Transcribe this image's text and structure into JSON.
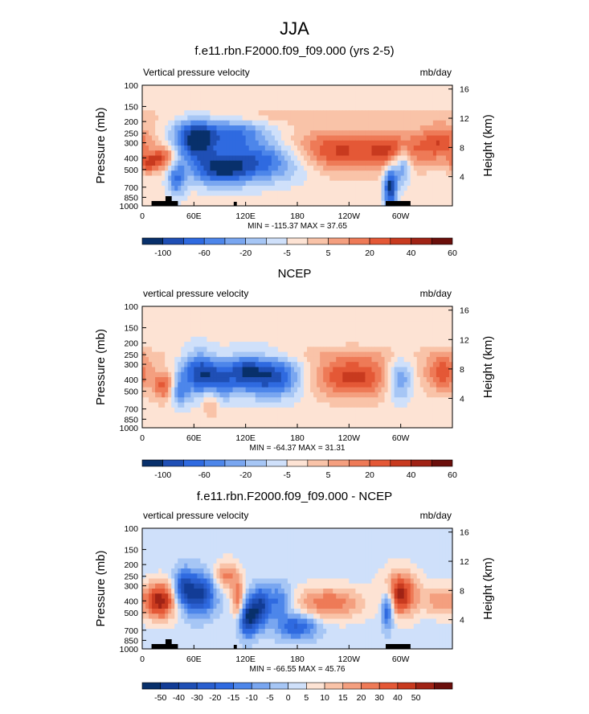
{
  "figure": {
    "title": "JJA"
  },
  "panels": [
    {
      "title": "f.e11.rbn.F2000.f09_f09.000 (yrs 2-5)",
      "left_string": "Vertical pressure velocity",
      "right_string": "mb/day",
      "stats": "MIN = -115.37  MAX =  37.65"
    },
    {
      "title": "NCEP",
      "left_string": "vertical pressure velocity",
      "right_string": "mb/day",
      "stats": "MIN = -64.37  MAX =  31.31"
    },
    {
      "title": "f.e11.rbn.F2000.f09_f09.000 - NCEP",
      "left_string": "vertical pressure velocity",
      "right_string": "mb/day",
      "stats": "MIN = -66.55  MAX =  45.76"
    }
  ],
  "chart_data": [
    {
      "type": "heatmap",
      "title": "f.e11.rbn.F2000.f09_f09.000 (yrs 2-5)",
      "xlabel": "",
      "ylabel": "Pressure (mb)",
      "y2label": "Height (km)",
      "x_ticks": [
        "0",
        "60E",
        "120E",
        "180",
        "120W",
        "60W"
      ],
      "y_ticks": [
        "100",
        "150",
        "200",
        "250",
        "300",
        "400",
        "500",
        "700",
        "850",
        "1000"
      ],
      "y2_ticks": [
        "16",
        "12",
        "8",
        "4"
      ],
      "colorbar_labels": [
        "-100",
        "-60",
        "-20",
        "-5",
        "5",
        "20",
        "40",
        "60"
      ],
      "colorbar_colors": [
        "#08306b",
        "#1f4fb5",
        "#2f6ae0",
        "#4d86ea",
        "#79a6f0",
        "#a6c6f5",
        "#cfe0fa",
        "#fde3d4",
        "#f9c3a8",
        "#f49f7f",
        "#ee7a57",
        "#e45836",
        "#c83a1f",
        "#a02315",
        "#6b0f0b"
      ],
      "ylim": [
        1000,
        100
      ],
      "zlim": [
        -115.37,
        37.65
      ]
    },
    {
      "type": "heatmap",
      "title": "NCEP",
      "xlabel": "",
      "ylabel": "Pressure (mb)",
      "y2label": "Height (km)",
      "x_ticks": [
        "0",
        "60E",
        "120E",
        "180",
        "120W",
        "60W"
      ],
      "y_ticks": [
        "100",
        "150",
        "200",
        "250",
        "300",
        "400",
        "500",
        "700",
        "850",
        "1000"
      ],
      "y2_ticks": [
        "16",
        "12",
        "8",
        "4"
      ],
      "colorbar_labels": [
        "-100",
        "-60",
        "-20",
        "-5",
        "5",
        "20",
        "40",
        "60"
      ],
      "colorbar_colors": [
        "#08306b",
        "#1f4fb5",
        "#2f6ae0",
        "#4d86ea",
        "#79a6f0",
        "#a6c6f5",
        "#cfe0fa",
        "#fde3d4",
        "#f9c3a8",
        "#f49f7f",
        "#ee7a57",
        "#e45836",
        "#c83a1f",
        "#a02315",
        "#6b0f0b"
      ],
      "ylim": [
        1000,
        100
      ],
      "zlim": [
        -64.37,
        31.31
      ]
    },
    {
      "type": "heatmap",
      "title": "f.e11.rbn.F2000.f09_f09.000 - NCEP",
      "xlabel": "",
      "ylabel": "Pressure (mb)",
      "y2label": "Height (km)",
      "x_ticks": [
        "0",
        "60E",
        "120E",
        "180",
        "120W",
        "60W"
      ],
      "y_ticks": [
        "100",
        "150",
        "200",
        "250",
        "300",
        "400",
        "500",
        "700",
        "850",
        "1000"
      ],
      "y2_ticks": [
        "16",
        "12",
        "8",
        "4"
      ],
      "colorbar_labels": [
        "-50",
        "-40",
        "-30",
        "-20",
        "-15",
        "-10",
        "-5",
        "0",
        "5",
        "10",
        "15",
        "20",
        "30",
        "40",
        "50"
      ],
      "colorbar_colors": [
        "#08306b",
        "#123c96",
        "#1f4fb5",
        "#2a5fcf",
        "#2f6ae0",
        "#4d86ea",
        "#79a6f0",
        "#a6c6f5",
        "#cfe0fa",
        "#fde3d4",
        "#f9c3a8",
        "#f49f7f",
        "#ee7a57",
        "#e45836",
        "#c83a1f",
        "#a02315",
        "#6b0f0b"
      ],
      "ylim": [
        1000,
        100
      ],
      "zlim": [
        -66.55,
        45.76
      ]
    }
  ]
}
